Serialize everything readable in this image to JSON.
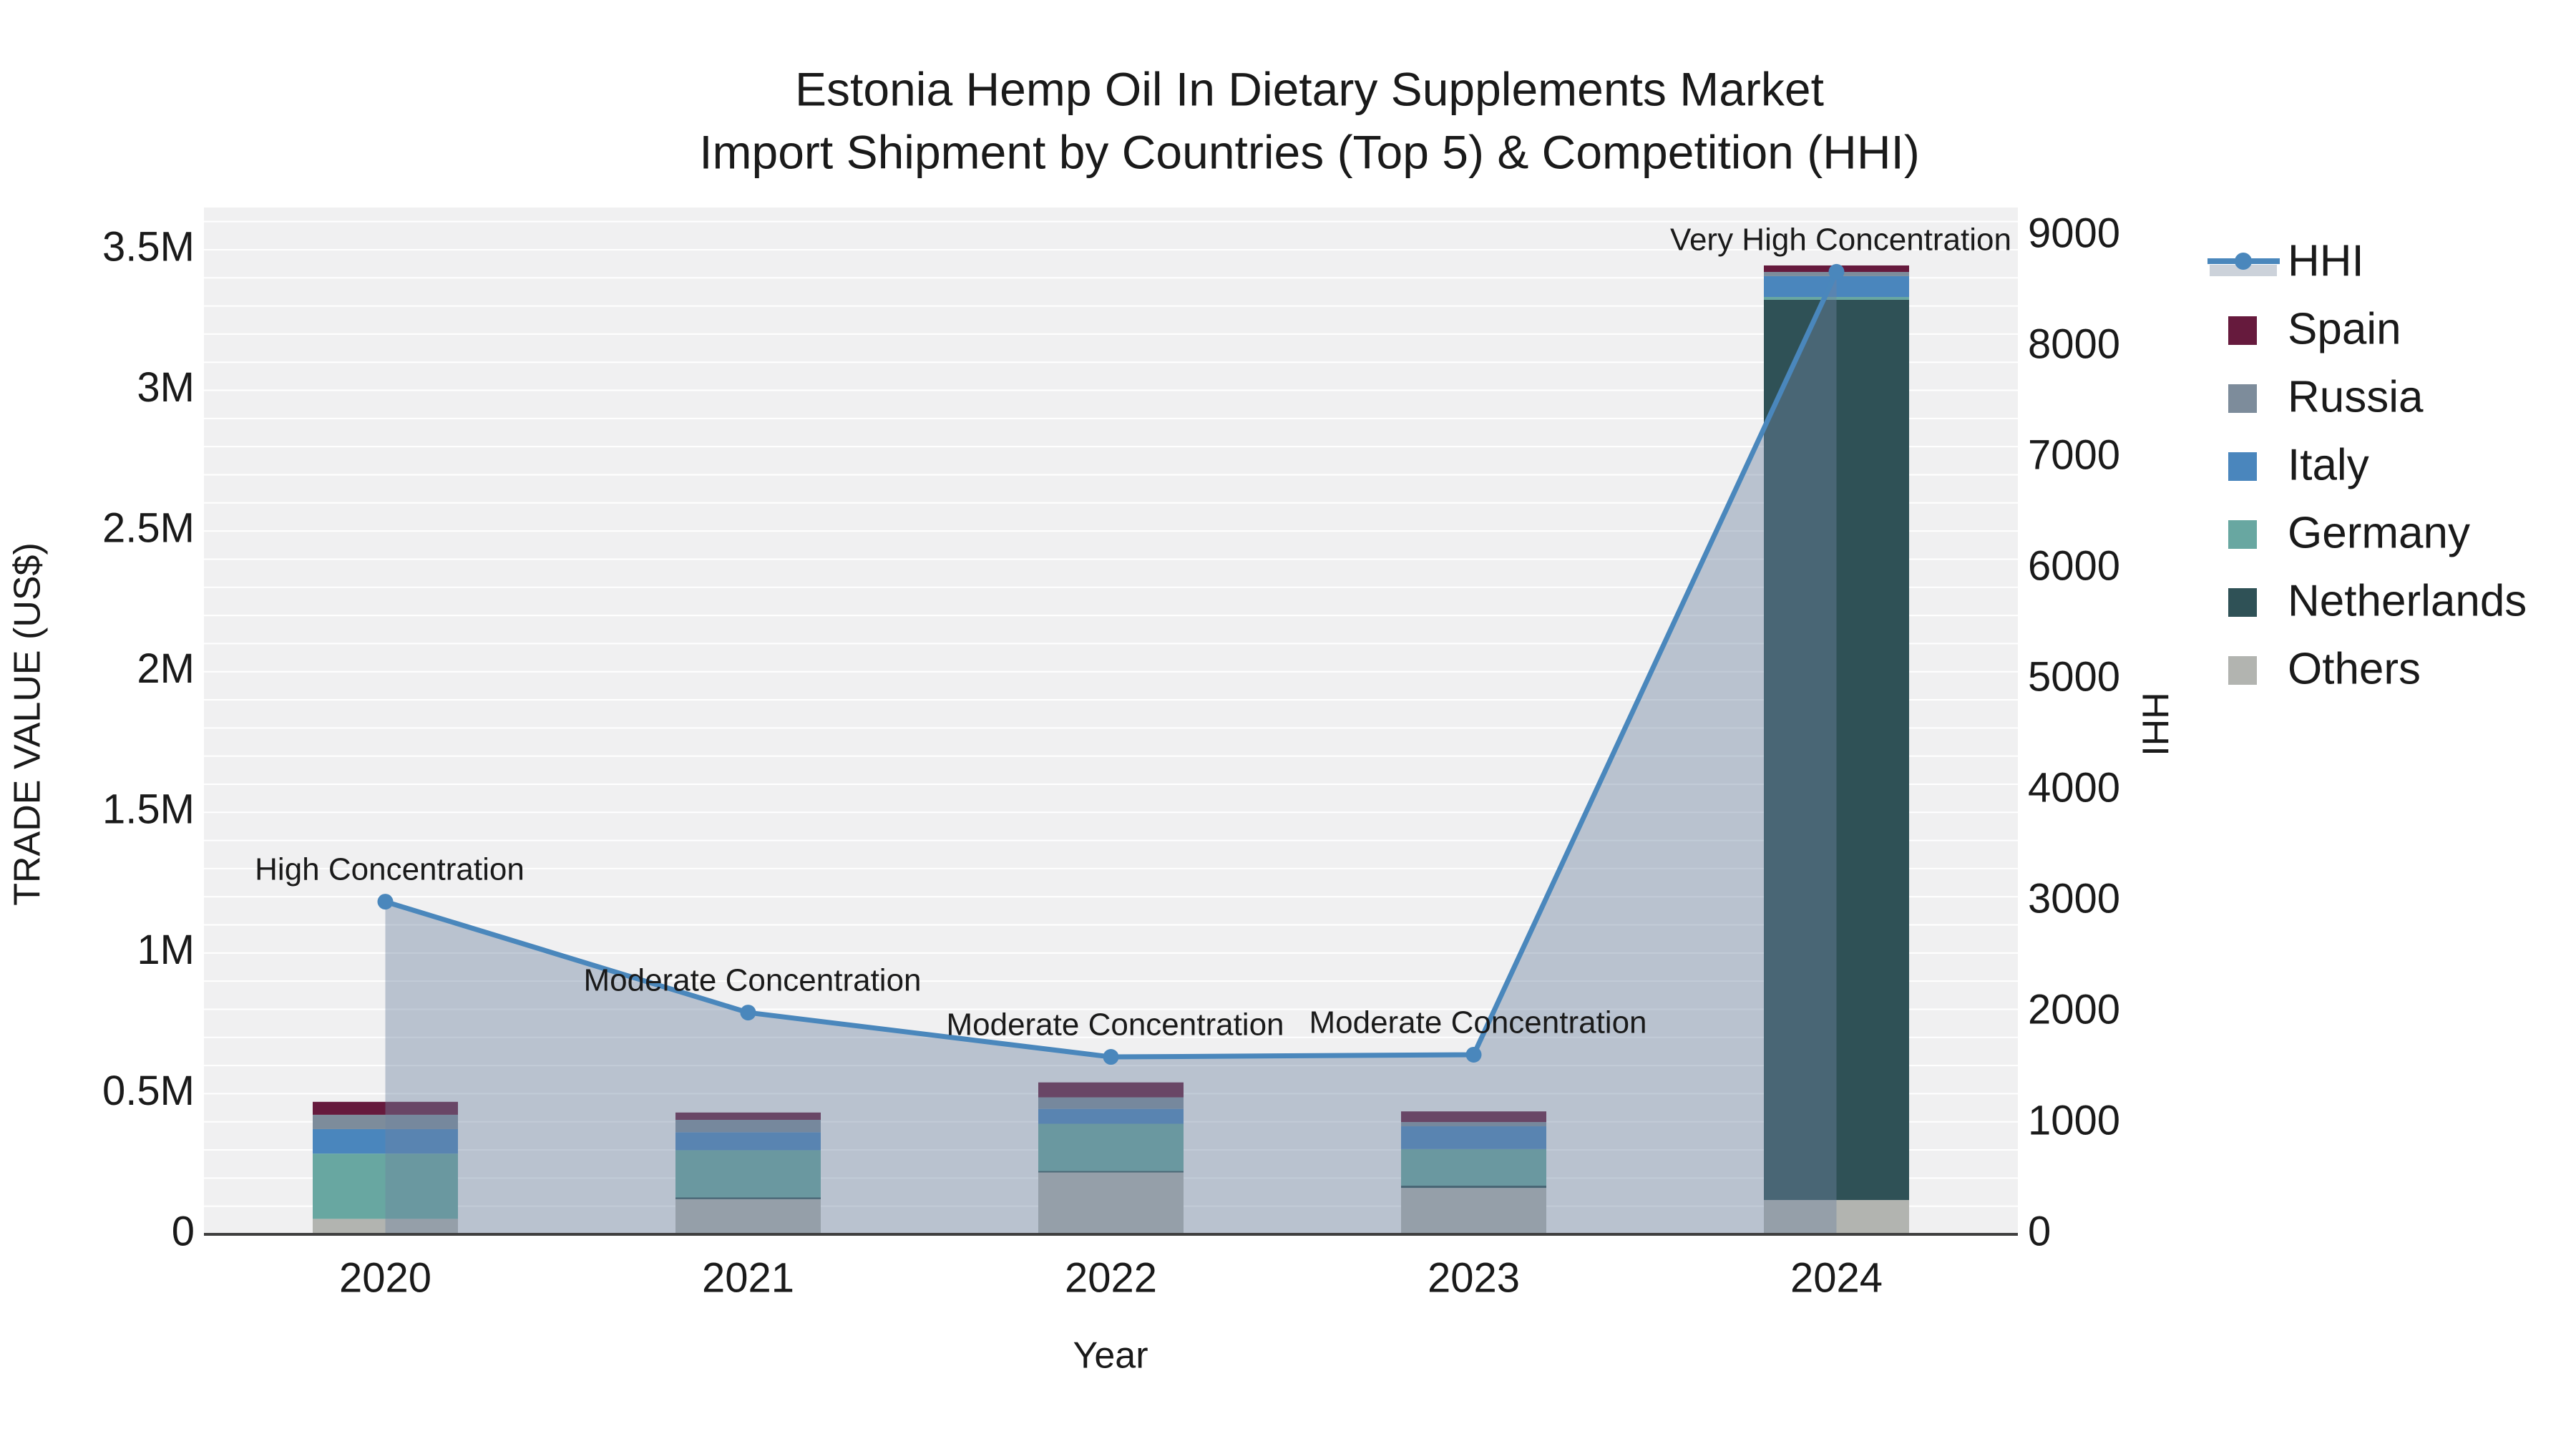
{
  "title": {
    "line1": "Estonia Hemp Oil In Dietary Supplements Market",
    "line2": "Import Shipment by Countries (Top 5) & Competition (HHI)"
  },
  "axes": {
    "x_label": "Year",
    "y_left_label": "TRADE VALUE (US$)",
    "y_right_label": "HHI",
    "y_left_ticks": [
      {
        "v": 0,
        "label": "0"
      },
      {
        "v": 500000,
        "label": "0.5M"
      },
      {
        "v": 1000000,
        "label": "1M"
      },
      {
        "v": 1500000,
        "label": "1.5M"
      },
      {
        "v": 2000000,
        "label": "2M"
      },
      {
        "v": 2500000,
        "label": "2.5M"
      },
      {
        "v": 3000000,
        "label": "3M"
      },
      {
        "v": 3500000,
        "label": "3.5M"
      }
    ],
    "y_right_ticks": [
      {
        "v": 0,
        "label": "0"
      },
      {
        "v": 1000,
        "label": "1000"
      },
      {
        "v": 2000,
        "label": "2000"
      },
      {
        "v": 3000,
        "label": "3000"
      },
      {
        "v": 4000,
        "label": "4000"
      },
      {
        "v": 5000,
        "label": "5000"
      },
      {
        "v": 6000,
        "label": "6000"
      },
      {
        "v": 7000,
        "label": "7000"
      },
      {
        "v": 8000,
        "label": "8000"
      },
      {
        "v": 9000,
        "label": "9000"
      }
    ]
  },
  "legend_order": [
    "HHI",
    "Spain",
    "Russia",
    "Italy",
    "Germany",
    "Netherlands",
    "Others"
  ],
  "colors": {
    "plot_background": "#f0f0f1",
    "gridline": "rgba(255,255,255,0.95)",
    "axis_line": "#3f3f3f",
    "text": "#1a1a1a",
    "hhi_line": "#4a87bc",
    "hhi_fill": "rgba(110,130,160,0.42)",
    "hhi_fill_swatch": "#ccd2da"
  },
  "chart_data": {
    "type": [
      "stacked-bar",
      "line"
    ],
    "categories": [
      "2020",
      "2021",
      "2022",
      "2023",
      "2024"
    ],
    "bar_series": [
      {
        "name": "Others",
        "color": "#b2b4b0",
        "values": [
          55000,
          125000,
          220000,
          165000,
          122000
        ]
      },
      {
        "name": "Netherlands",
        "color": "#2f5156",
        "values": [
          0,
          6000,
          5000,
          8000,
          3200000
        ]
      },
      {
        "name": "Germany",
        "color": "#68a7a1",
        "values": [
          232000,
          168000,
          168000,
          130000,
          10000
        ]
      },
      {
        "name": "Italy",
        "color": "#4a86bd",
        "values": [
          87000,
          64000,
          53000,
          81000,
          74000
        ]
      },
      {
        "name": "Russia",
        "color": "#7d8c9b",
        "values": [
          51000,
          44000,
          41000,
          15000,
          15000
        ]
      },
      {
        "name": "Spain",
        "color": "#661a3d",
        "values": [
          46000,
          26000,
          53000,
          38000,
          23000
        ]
      }
    ],
    "line_series": {
      "name": "HHI",
      "axis": "right",
      "color": "#4a87bc",
      "values": [
        3000,
        2000,
        1600,
        1620,
        8680
      ]
    },
    "annotations": [
      {
        "year": "2020",
        "text": "High Concentration"
      },
      {
        "year": "2021",
        "text": "Moderate Concentration"
      },
      {
        "year": "2022",
        "text": "Moderate Concentration"
      },
      {
        "year": "2023",
        "text": "Moderate Concentration"
      },
      {
        "year": "2024",
        "text": "Very High Concentration"
      }
    ],
    "y_left": {
      "label": "TRADE VALUE (US$)",
      "min": 0,
      "max": 3650000,
      "tick_step": 500000,
      "grid_step": 100000
    },
    "y_right": {
      "label": "HHI",
      "min": 0,
      "max": 9260,
      "tick_step": 1000
    },
    "xlabel": "Year",
    "legend_position": "right",
    "grid": true
  }
}
